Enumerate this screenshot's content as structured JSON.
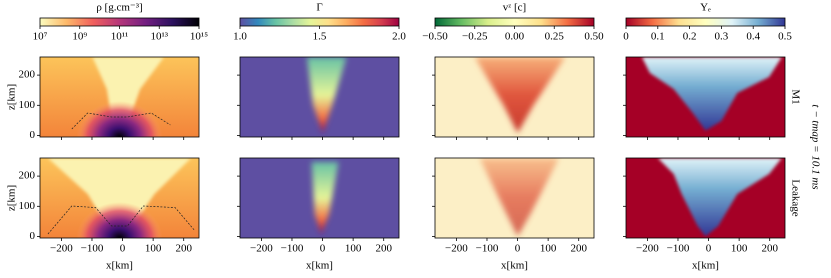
{
  "chart_data": [
    {
      "type": "heatmap",
      "xlim": [
        -270,
        250
      ],
      "ylim": [
        -5,
        260
      ],
      "xticks": [
        {
          "value": -200,
          "label": "−200"
        },
        {
          "value": -100,
          "label": "−100"
        },
        0,
        100,
        200
      ],
      "yticks": [
        0,
        100,
        200
      ],
      "ylabel": "z[km]"
    },
    {
      "type": "heatmap",
      "xlim": [
        -270,
        250
      ],
      "ylim": [
        -5,
        260
      ],
      "xticks": [
        {
          "value": -200,
          "label": "−200"
        },
        {
          "value": -100,
          "label": "−100"
        },
        0,
        100,
        200
      ],
      "yticks": [
        0,
        100,
        200
      ]
    },
    {
      "type": "heatmap",
      "xlim": [
        -270,
        250
      ],
      "ylim": [
        -5,
        260
      ],
      "xticks": [
        {
          "value": -200,
          "label": "−200"
        },
        {
          "value": -100,
          "label": "−100"
        },
        0,
        100,
        200
      ],
      "yticks": [
        0,
        100,
        200
      ]
    },
    {
      "type": "heatmap",
      "xlim": [
        -270,
        250
      ],
      "ylim": [
        -5,
        260
      ],
      "xticks": [
        {
          "value": -200,
          "label": "−200"
        },
        {
          "value": -100,
          "label": "−100"
        },
        0,
        100,
        200
      ],
      "yticks": [
        0,
        100,
        200
      ]
    },
    {
      "type": "heatmap",
      "xlim": [
        -270,
        250
      ],
      "ylim": [
        -5,
        260
      ],
      "xticks": [
        {
          "value": -200,
          "label": "−200"
        },
        {
          "value": -100,
          "label": "−100"
        },
        0,
        100,
        200
      ],
      "yticks": [
        0,
        100,
        200
      ],
      "xlabel": "x[km]",
      "ylabel": "z[km]"
    },
    {
      "type": "heatmap",
      "xlim": [
        -270,
        250
      ],
      "ylim": [
        -5,
        260
      ],
      "xticks": [
        {
          "value": -200,
          "label": "−200"
        },
        {
          "value": -100,
          "label": "−100"
        },
        0,
        100,
        200
      ],
      "yticks": [
        0,
        100,
        200
      ],
      "xlabel": "x[km]"
    },
    {
      "type": "heatmap",
      "xlim": [
        -270,
        250
      ],
      "ylim": [
        -5,
        260
      ],
      "xticks": [
        {
          "value": -200,
          "label": "−200"
        },
        {
          "value": -100,
          "label": "−100"
        },
        0,
        100,
        200
      ],
      "yticks": [
        0,
        100,
        200
      ],
      "xlabel": "x[km]"
    },
    {
      "type": "heatmap",
      "xlim": [
        -270,
        250
      ],
      "ylim": [
        -5,
        260
      ],
      "xticks": [
        {
          "value": -200,
          "label": "−200"
        },
        {
          "value": -100,
          "label": "−100"
        },
        0,
        100,
        200
      ],
      "yticks": [
        0,
        100,
        200
      ],
      "xlabel": "x[km]"
    }
  ],
  "colorbars": [
    {
      "label": "ρ [g.cm⁻³]",
      "log": true,
      "lim": [
        10000000,
        1000000000000000
      ],
      "ticks": [
        {
          "value": 10000000,
          "label": "10⁷"
        },
        {
          "value": 1000000000,
          "label": "10⁹"
        },
        {
          "value": 100000000000,
          "label": "10¹¹"
        },
        {
          "value": 10000000000000,
          "label": "10¹³"
        },
        {
          "value": 1000000000000000,
          "label": "10¹⁵"
        }
      ],
      "colors": [
        "#fcfdbf",
        "#fdb96a",
        "#f1605d",
        "#b5367a",
        "#721f81",
        "#2c115f",
        "#000004"
      ]
    },
    {
      "label": "Γ",
      "log": false,
      "lim": [
        1,
        2
      ],
      "ticks": [
        {
          "value": 1,
          "label": "1.0"
        },
        1.5,
        {
          "value": 2,
          "label": "2.0"
        }
      ],
      "colors": [
        "#5e4fa2",
        "#3288bd",
        "#66c2a5",
        "#abdda4",
        "#e6f598",
        "#fee08b",
        "#fdae61",
        "#f46d43",
        "#d53e4f",
        "#9e0142"
      ]
    },
    {
      "label": "vᶻ [c]",
      "log": false,
      "lim": [
        -0.5,
        0.5
      ],
      "ticks": [
        {
          "value": -0.5,
          "label": "−0.50"
        },
        {
          "value": -0.25,
          "label": "−0.25"
        },
        {
          "value": 0,
          "label": "0.00"
        },
        0.25,
        {
          "value": 0.5,
          "label": "0.50"
        }
      ],
      "colors": [
        "#006837",
        "#66bd63",
        "#d9ef8b",
        "#ffffbf",
        "#fee08b",
        "#f46d43",
        "#a50026"
      ]
    },
    {
      "label": "Yₑ",
      "log": false,
      "lim": [
        0,
        0.5
      ],
      "ticks": [
        0,
        0.1,
        0.2,
        0.3,
        0.4,
        0.5
      ],
      "colors": [
        "#a50026",
        "#f46d43",
        "#fee090",
        "#ffffbf",
        "#e0f3f8",
        "#74add1",
        "#313695"
      ]
    }
  ],
  "row_labels": [
    "M1",
    "Leakage"
  ],
  "time_label": "t − tmap = 10.1 ms"
}
